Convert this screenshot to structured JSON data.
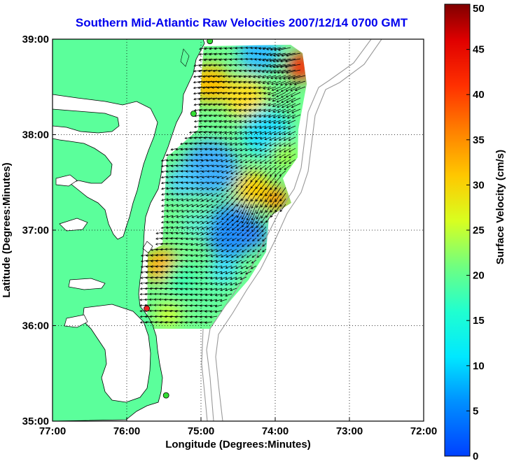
{
  "chart_data": {
    "type": "map-vector-field",
    "title": "Southern Mid-Atlantic Raw Velocities 2007/12/14 0700 GMT",
    "xlabel": "Longitude (Degrees:Minutes)",
    "ylabel": "Latitude (Degrees:Minutes)",
    "xlim": [
      -77,
      -72
    ],
    "ylim": [
      35,
      39
    ],
    "x_ticks": [
      {
        "value": -77,
        "label": "77:00"
      },
      {
        "value": -76,
        "label": "76:00"
      },
      {
        "value": -75,
        "label": "75:00"
      },
      {
        "value": -74,
        "label": "74:00"
      },
      {
        "value": -73,
        "label": "73:00"
      },
      {
        "value": -72,
        "label": "72:00"
      }
    ],
    "y_ticks": [
      {
        "value": 35,
        "label": "35:00"
      },
      {
        "value": 36,
        "label": "36:00"
      },
      {
        "value": 37,
        "label": "37:00"
      },
      {
        "value": 38,
        "label": "38:00"
      },
      {
        "value": 39,
        "label": "39:00"
      }
    ],
    "grid": true,
    "colorbar": {
      "label": "Surface Velocity (cm/s)",
      "range": [
        0,
        50
      ],
      "ticks": [
        0,
        5,
        10,
        15,
        20,
        25,
        30,
        35,
        40,
        45,
        50
      ]
    },
    "stations": [
      {
        "lon": -74.88,
        "lat": 38.98,
        "status": "active",
        "color": "#33dd33"
      },
      {
        "lon": -75.1,
        "lat": 38.22,
        "status": "active",
        "color": "#33dd33"
      },
      {
        "lon": -75.73,
        "lat": 36.18,
        "status": "inactive",
        "color": "#ee2222"
      },
      {
        "lon": -75.47,
        "lat": 35.27,
        "status": "active",
        "color": "#33dd33"
      }
    ],
    "velocity_samples": [
      {
        "lon": -74.3,
        "lat": 38.85,
        "speed": 10,
        "dir_deg": 270
      },
      {
        "lon": -73.7,
        "lat": 38.75,
        "speed": 48,
        "dir_deg": 260
      },
      {
        "lon": -74.7,
        "lat": 38.5,
        "speed": 28,
        "dir_deg": 265
      },
      {
        "lon": -74.1,
        "lat": 38.4,
        "speed": 16,
        "dir_deg": 265
      },
      {
        "lon": -73.8,
        "lat": 38.45,
        "speed": 30,
        "dir_deg": 240
      },
      {
        "lon": -74.9,
        "lat": 38.0,
        "speed": 22,
        "dir_deg": 265
      },
      {
        "lon": -74.2,
        "lat": 37.95,
        "speed": 12,
        "dir_deg": 260
      },
      {
        "lon": -74.0,
        "lat": 37.85,
        "speed": 18,
        "dir_deg": 240
      },
      {
        "lon": -75.2,
        "lat": 37.6,
        "speed": 16,
        "dir_deg": 265
      },
      {
        "lon": -74.8,
        "lat": 37.6,
        "speed": 8,
        "dir_deg": 265
      },
      {
        "lon": -74.0,
        "lat": 37.4,
        "speed": 30,
        "dir_deg": 210
      },
      {
        "lon": -74.3,
        "lat": 37.25,
        "speed": 36,
        "dir_deg": 200
      },
      {
        "lon": -75.0,
        "lat": 37.1,
        "speed": 12,
        "dir_deg": 250
      },
      {
        "lon": -74.5,
        "lat": 36.95,
        "speed": 10,
        "dir_deg": 240
      },
      {
        "lon": -74.2,
        "lat": 36.85,
        "speed": 6,
        "dir_deg": 230
      },
      {
        "lon": -75.3,
        "lat": 36.8,
        "speed": 20,
        "dir_deg": 270
      },
      {
        "lon": -74.9,
        "lat": 36.6,
        "speed": 16,
        "dir_deg": 260
      },
      {
        "lon": -74.5,
        "lat": 36.45,
        "speed": 16,
        "dir_deg": 250
      },
      {
        "lon": -75.5,
        "lat": 36.25,
        "speed": 24,
        "dir_deg": 270
      },
      {
        "lon": -75.0,
        "lat": 36.15,
        "speed": 18,
        "dir_deg": 265
      }
    ]
  }
}
